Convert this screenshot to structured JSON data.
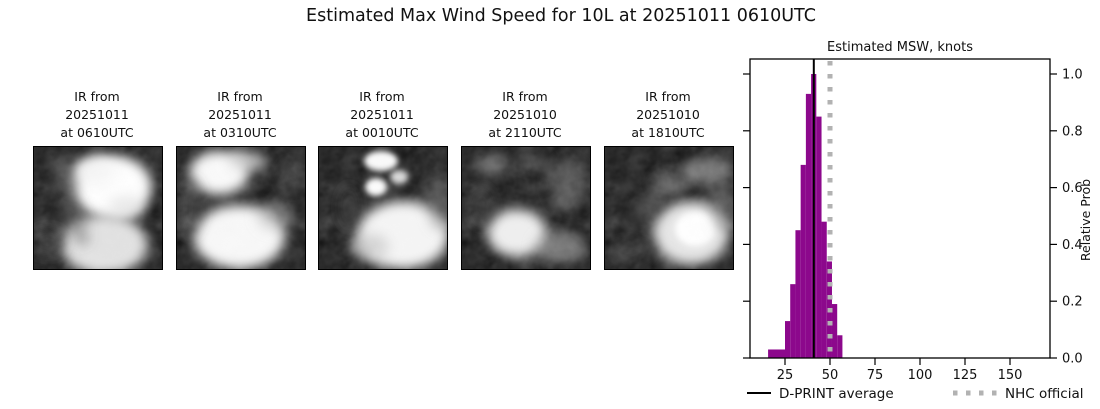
{
  "title": "Estimated Max Wind Speed for 10L at 20251011 0610UTC",
  "panels": [
    {
      "line1": "IR from",
      "line2": "20251011",
      "line3": "at 0610UTC"
    },
    {
      "line1": "IR from",
      "line2": "20251011",
      "line3": "at 0310UTC"
    },
    {
      "line1": "IR from",
      "line2": "20251011",
      "line3": "at 0010UTC"
    },
    {
      "line1": "IR from",
      "line2": "20251010",
      "line3": "at 2110UTC"
    },
    {
      "line1": "IR from",
      "line2": "20251010",
      "line3": "at 1810UTC"
    }
  ],
  "chart_data": {
    "type": "bar",
    "title": "Estimated MSW, knots",
    "ylabel_right": "Relative Prob",
    "x_ticks": [
      25,
      50,
      75,
      100,
      125,
      150
    ],
    "y_tick_labels": [
      "0.0",
      "0.2",
      "0.4",
      "0.6",
      "0.8",
      "1.0"
    ],
    "xlim": [
      6,
      172
    ],
    "ylim": [
      0,
      1.05
    ],
    "bin_edges": [
      15.6,
      25.0,
      27.9,
      30.8,
      33.7,
      36.6,
      39.5,
      42.4,
      45.3,
      48.2,
      51.1,
      54.0,
      56.9
    ],
    "bin_heights": [
      0.03,
      0.13,
      0.26,
      0.45,
      0.68,
      0.93,
      1.0,
      0.85,
      0.48,
      0.34,
      0.19,
      0.08
    ],
    "dprint_average_knots": 41,
    "nhc_official_knots": 50,
    "bar_color": "#8c088c",
    "average_line_color": "#000000",
    "nhc_line_color": "#b2b2b2",
    "legend": [
      {
        "label": "D-PRINT average",
        "style": "solid-black-line"
      },
      {
        "label": "NHC official",
        "style": "dotted-gray-line"
      }
    ]
  }
}
